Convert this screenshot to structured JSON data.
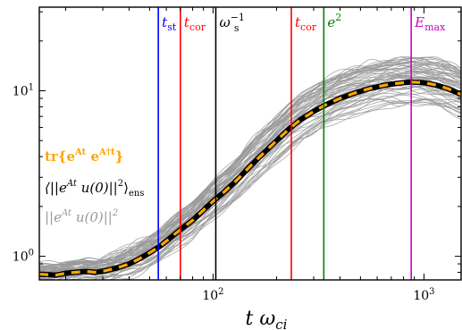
{
  "chart_data": {
    "type": "line",
    "title": "",
    "xlabel": {
      "base": "t ω",
      "sub": "ci"
    },
    "ylabel": "",
    "xscale": "log",
    "yscale": "log",
    "xlim": [
      15,
      1500
    ],
    "ylim": [
      0.72,
      32
    ],
    "x_ticks": [
      {
        "value": 100,
        "base": "10",
        "exp": "2"
      },
      {
        "value": 1000,
        "base": "10",
        "exp": "3"
      }
    ],
    "y_ticks": [
      {
        "value": 1,
        "base": "10",
        "exp": "0"
      },
      {
        "value": 10,
        "base": "10",
        "exp": "1"
      }
    ],
    "grid": false,
    "legend": {
      "placement": "left",
      "entries": [
        {
          "label": "tr{e^{At} e^{A†t}}",
          "color": "#ffa500",
          "style": "dashed"
        },
        {
          "label": "⟨||e^{At} u(0)||²⟩_ens",
          "color": "#000000",
          "style": "solid"
        },
        {
          "label": "||e^{At} u(0)||²",
          "color": "#999999",
          "style": "solid"
        }
      ]
    },
    "mean_curve": {
      "x": [
        15,
        18,
        20,
        22,
        25,
        28,
        31,
        35,
        40,
        45,
        50,
        56,
        63,
        70,
        80,
        90,
        100,
        115,
        130,
        150,
        170,
        200,
        230,
        260,
        300,
        340,
        400,
        470,
        550,
        650,
        750,
        870,
        1000,
        1150,
        1300,
        1500
      ],
      "y": [
        0.78,
        0.77,
        0.79,
        0.8,
        0.81,
        0.8,
        0.82,
        0.85,
        0.9,
        0.97,
        1.05,
        1.15,
        1.3,
        1.45,
        1.65,
        1.9,
        2.15,
        2.5,
        2.9,
        3.5,
        4.1,
        5.0,
        5.9,
        6.7,
        7.5,
        8.2,
        9.0,
        9.7,
        10.3,
        10.8,
        11.1,
        11.3,
        11.2,
        10.8,
        10.3,
        9.5
      ]
    },
    "ensemble": {
      "member_count": 60,
      "color": "#999999",
      "spread_low": 0.72,
      "spread_high": 1.42
    },
    "vertical_lines": [
      {
        "x": 55,
        "label": "t",
        "sub": "st",
        "sup": "",
        "color": "#0000ff"
      },
      {
        "x": 70,
        "label": "t",
        "sub": "cor",
        "sup": "",
        "color": "#ff0000"
      },
      {
        "x": 103,
        "label": "ω",
        "sub": "s",
        "sup": "−1",
        "color": "#000000"
      },
      {
        "x": 235,
        "label": "t",
        "sub": "cor",
        "sup": "",
        "color": "#ff0000"
      },
      {
        "x": 335,
        "label": "e",
        "sub": "",
        "sup": "2",
        "color": "#008000"
      },
      {
        "x": 870,
        "label": "E",
        "sub": "max",
        "sup": "",
        "color": "#cc00cc"
      }
    ]
  }
}
